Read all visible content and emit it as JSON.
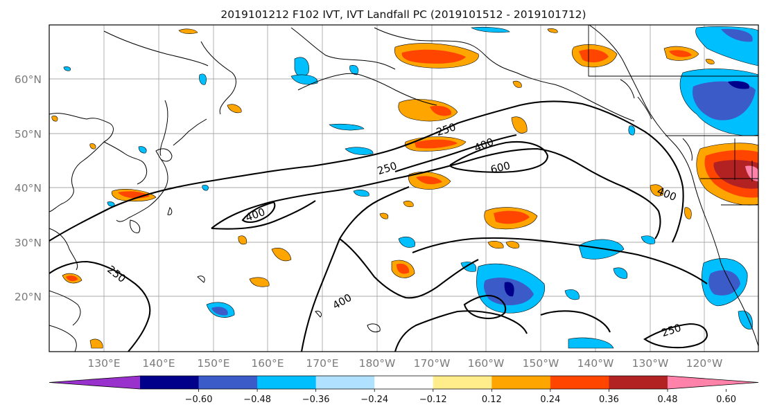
{
  "title": "2019101212 F102 IVT, IVT Landfall PC (2019101512 - 2019101712)",
  "map": {
    "lat_labels": [
      "60°N",
      "50°N",
      "40°N",
      "30°N",
      "20°N"
    ],
    "lon_labels": [
      "130°E",
      "140°E",
      "150°E",
      "160°E",
      "170°E",
      "180°W",
      "170°W",
      "160°W",
      "150°W",
      "140°W",
      "130°W",
      "120°W"
    ],
    "ivt_contour_labels": [
      "250",
      "400",
      "600",
      "250",
      "400",
      "250",
      "400",
      "400",
      "250"
    ]
  },
  "colorbar": {
    "ticks": [
      "−0.60",
      "−0.48",
      "−0.36",
      "−0.24",
      "−0.12",
      "0.12",
      "0.24",
      "0.36",
      "0.48",
      "0.60"
    ],
    "colors": [
      "#9932CC",
      "#00008B",
      "#3A5BC8",
      "#00BFFF",
      "#B0E2FF",
      "#FFFFFF",
      "#FFEC8B",
      "#FFA500",
      "#FF4500",
      "#B22222",
      "#FF82AB"
    ]
  },
  "colors": {
    "neg_strong": "#3A5BC8",
    "neg_mid": "#00BFFF",
    "neg_weak": "#B0E2FF",
    "pos_weak": "#FFEC8B",
    "pos_mid": "#FFA500",
    "pos_strong": "#FF4500",
    "pos_max": "#B22222"
  }
}
